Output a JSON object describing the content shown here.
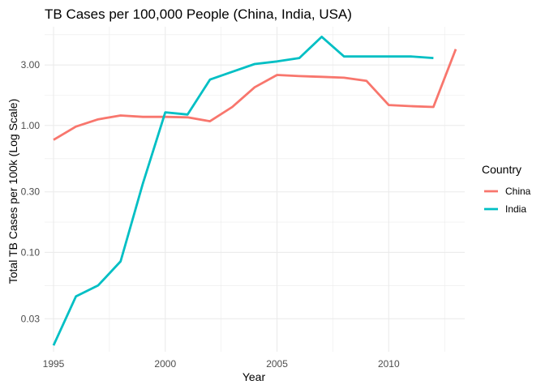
{
  "chart_data": {
    "type": "line",
    "title": "TB Cases per 100,000 People (China, India, USA)",
    "xlabel": "Year",
    "ylabel": "Total TB Cases per 100k (Log Scale)",
    "y_scale": "log10",
    "xlim": [
      1994.6,
      2013.4
    ],
    "ylim": [
      0.0165,
      6.0
    ],
    "x_ticks": [
      1995,
      2000,
      2005,
      2010
    ],
    "x_tick_labels": [
      "1995",
      "2000",
      "2005",
      "2010"
    ],
    "y_ticks": [
      0.03,
      0.1,
      0.3,
      1,
      3
    ],
    "y_tick_labels": [
      "0.03",
      "0.10",
      "0.30",
      "1.00",
      "3.00"
    ],
    "grid": true,
    "legend": {
      "title": "Country",
      "position": "right"
    },
    "series": [
      {
        "name": "China",
        "color": "#F8766D",
        "x": [
          1995,
          1996,
          1997,
          1998,
          1999,
          2000,
          2001,
          2002,
          2003,
          2004,
          2005,
          2006,
          2007,
          2008,
          2009,
          2010,
          2011,
          2012,
          2013
        ],
        "y": [
          0.77,
          0.98,
          1.12,
          1.2,
          1.17,
          1.17,
          1.16,
          1.08,
          1.4,
          2.0,
          2.5,
          2.45,
          2.42,
          2.38,
          2.25,
          1.45,
          1.42,
          1.4,
          4.0
        ]
      },
      {
        "name": "India",
        "color": "#00BFC4",
        "x": [
          1995,
          1996,
          1997,
          1998,
          1999,
          2000,
          2001,
          2002,
          2003,
          2004,
          2005,
          2006,
          2007,
          2008,
          2009,
          2010,
          2011,
          2012
        ],
        "y": [
          0.0185,
          0.045,
          0.055,
          0.085,
          0.35,
          1.27,
          1.22,
          2.3,
          2.65,
          3.05,
          3.2,
          3.4,
          5.0,
          3.5,
          3.5,
          3.5,
          3.5,
          3.4
        ]
      }
    ]
  }
}
